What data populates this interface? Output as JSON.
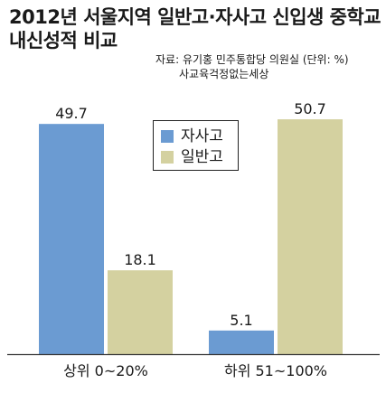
{
  "title_lines": [
    "2012년 서울지역 일반고·자사고 신입생 중학교",
    "내신성적 비교"
  ],
  "source_lines": [
    "자료: 유기홍 민주통합당 의원실 (단위: %)",
    "사교육걱정없는세상"
  ],
  "colors": {
    "series_1": "#6b9bd2",
    "series_2": "#d4d1a0",
    "axis": "#333333"
  },
  "chart_data": {
    "type": "bar",
    "title": "2012년 서울지역 일반고·자사고 신입생 중학교 내신성적 비교",
    "unit": "%",
    "categories": [
      "상위 0~20%",
      "하위 51~100%"
    ],
    "series": [
      {
        "name": "자사고",
        "values": [
          49.7,
          5.1
        ]
      },
      {
        "name": "일반고",
        "values": [
          18.1,
          50.7
        ]
      }
    ],
    "value_labels": [
      [
        "49.7",
        "5.1"
      ],
      [
        "18.1",
        "50.7"
      ]
    ],
    "ylim": [
      0,
      55
    ],
    "legend_position": "top-center",
    "grid": false
  }
}
